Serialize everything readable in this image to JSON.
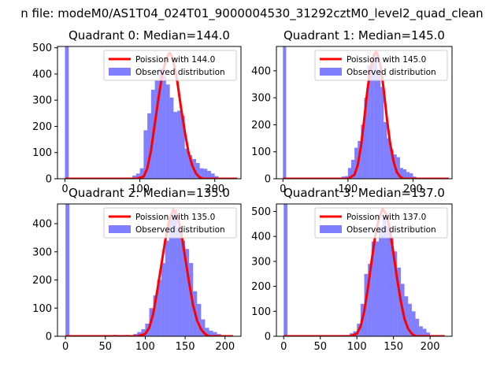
{
  "figure_title": "n file: modeM0/AS1T04_024T01_9000004530_31292cztM0_level2_quad_clean",
  "chart_data": [
    {
      "type": "bar",
      "title": "Quadrant 0: Median=144.0",
      "median": 144.0,
      "xlim": [
        -10,
        235
      ],
      "ylim": [
        0,
        505
      ],
      "xticks": [
        0,
        100,
        200
      ],
      "yticks": [
        0,
        100,
        200,
        300,
        400,
        500
      ],
      "legend_position": "upper right",
      "legend": [
        "Poission with 144.0",
        "Observed distribution"
      ],
      "series": [
        {
          "name": "Observed distribution",
          "kind": "histogram",
          "color": "#0000ff",
          "bin_width": 5,
          "bins": [
            [
              0,
              505
            ],
            [
              75,
              3
            ],
            [
              80,
              3
            ],
            [
              85,
              3
            ],
            [
              90,
              12
            ],
            [
              95,
              20
            ],
            [
              100,
              40
            ],
            [
              105,
              185
            ],
            [
              110,
              250
            ],
            [
              115,
              340
            ],
            [
              120,
              375
            ],
            [
              125,
              420
            ],
            [
              130,
              400
            ],
            [
              135,
              360
            ],
            [
              140,
              310
            ],
            [
              145,
              255
            ],
            [
              150,
              260
            ],
            [
              155,
              240
            ],
            [
              160,
              115
            ],
            [
              165,
              90
            ],
            [
              170,
              75
            ],
            [
              175,
              60
            ],
            [
              180,
              40
            ],
            [
              185,
              38
            ],
            [
              190,
              30
            ],
            [
              195,
              20
            ],
            [
              200,
              10
            ]
          ]
        },
        {
          "name": "Poission with 144.0",
          "kind": "line",
          "color": "#ff0000",
          "points": [
            [
              0,
              0
            ],
            [
              95,
              0
            ],
            [
              105,
              8
            ],
            [
              110,
              40
            ],
            [
              115,
              110
            ],
            [
              120,
              210
            ],
            [
              125,
              310
            ],
            [
              130,
              400
            ],
            [
              135,
              455
            ],
            [
              138,
              475
            ],
            [
              140,
              480
            ],
            [
              142,
              470
            ],
            [
              145,
              445
            ],
            [
              150,
              370
            ],
            [
              155,
              270
            ],
            [
              160,
              180
            ],
            [
              165,
              100
            ],
            [
              170,
              50
            ],
            [
              175,
              20
            ],
            [
              180,
              5
            ],
            [
              185,
              0
            ],
            [
              230,
              0
            ]
          ]
        }
      ]
    },
    {
      "type": "bar",
      "title": "Quadrant 1: Median=145.0",
      "median": 145.0,
      "xlim": [
        -10,
        260
      ],
      "ylim": [
        0,
        490
      ],
      "xticks": [
        0,
        100,
        200
      ],
      "yticks": [
        0,
        100,
        200,
        300,
        400
      ],
      "legend_position": "upper right",
      "legend": [
        "Poission with 145.0",
        "Observed distribution"
      ],
      "series": [
        {
          "name": "Observed distribution",
          "kind": "histogram",
          "color": "#0000ff",
          "bin_width": 5,
          "bins": [
            [
              0,
              490
            ],
            [
              80,
              3
            ],
            [
              85,
              3
            ],
            [
              90,
              8
            ],
            [
              95,
              10
            ],
            [
              100,
              40
            ],
            [
              105,
              70
            ],
            [
              110,
              115
            ],
            [
              115,
              140
            ],
            [
              120,
              200
            ],
            [
              125,
              300
            ],
            [
              130,
              420
            ],
            [
              135,
              440
            ],
            [
              140,
              460
            ],
            [
              145,
              400
            ],
            [
              150,
              340
            ],
            [
              155,
              210
            ],
            [
              160,
              150
            ],
            [
              165,
              110
            ],
            [
              170,
              90
            ],
            [
              175,
              80
            ],
            [
              180,
              40
            ],
            [
              185,
              35
            ],
            [
              190,
              25
            ],
            [
              195,
              20
            ],
            [
              200,
              8
            ]
          ]
        },
        {
          "name": "Poission with 145.0",
          "kind": "line",
          "color": "#ff0000",
          "points": [
            [
              0,
              0
            ],
            [
              100,
              0
            ],
            [
              110,
              15
            ],
            [
              115,
              50
            ],
            [
              120,
              120
            ],
            [
              125,
              220
            ],
            [
              130,
              330
            ],
            [
              135,
              410
            ],
            [
              140,
              460
            ],
            [
              143,
              470
            ],
            [
              145,
              465
            ],
            [
              150,
              420
            ],
            [
              155,
              330
            ],
            [
              160,
              220
            ],
            [
              165,
              130
            ],
            [
              170,
              65
            ],
            [
              175,
              25
            ],
            [
              180,
              8
            ],
            [
              185,
              0
            ],
            [
              255,
              0
            ]
          ]
        }
      ]
    },
    {
      "type": "bar",
      "title": "Quadrant 2: Median=135.0",
      "median": 135.0,
      "xlim": [
        -10,
        220
      ],
      "ylim": [
        0,
        470
      ],
      "xticks": [
        0,
        50,
        100,
        150,
        200
      ],
      "yticks": [
        0,
        100,
        200,
        300,
        400
      ],
      "legend_position": "upper right",
      "legend": [
        "Poission with 135.0",
        "Observed distribution"
      ],
      "series": [
        {
          "name": "Observed distribution",
          "kind": "histogram",
          "color": "#0000ff",
          "bin_width": 5,
          "bins": [
            [
              0,
              470
            ],
            [
              60,
              5
            ],
            [
              75,
              5
            ],
            [
              85,
              8
            ],
            [
              90,
              15
            ],
            [
              95,
              25
            ],
            [
              100,
              45
            ],
            [
              105,
              100
            ],
            [
              110,
              145
            ],
            [
              115,
              200
            ],
            [
              120,
              260
            ],
            [
              125,
              340
            ],
            [
              130,
              420
            ],
            [
              135,
              450
            ],
            [
              140,
              390
            ],
            [
              145,
              340
            ],
            [
              150,
              310
            ],
            [
              155,
              260
            ],
            [
              160,
              160
            ],
            [
              165,
              115
            ],
            [
              170,
              60
            ],
            [
              175,
              30
            ],
            [
              180,
              20
            ],
            [
              185,
              15
            ],
            [
              190,
              8
            ],
            [
              195,
              3
            ]
          ]
        },
        {
          "name": "Poission with 135.0",
          "kind": "line",
          "color": "#ff0000",
          "points": [
            [
              0,
              0
            ],
            [
              90,
              0
            ],
            [
              100,
              8
            ],
            [
              105,
              30
            ],
            [
              110,
              80
            ],
            [
              115,
              160
            ],
            [
              120,
              250
            ],
            [
              125,
              340
            ],
            [
              130,
              410
            ],
            [
              135,
              450
            ],
            [
              140,
              430
            ],
            [
              145,
              370
            ],
            [
              150,
              280
            ],
            [
              155,
              190
            ],
            [
              160,
              110
            ],
            [
              165,
              55
            ],
            [
              170,
              25
            ],
            [
              175,
              8
            ],
            [
              180,
              0
            ],
            [
              210,
              0
            ]
          ]
        }
      ]
    },
    {
      "type": "bar",
      "title": "Quadrant 3: Median=137.0",
      "median": 137.0,
      "xlim": [
        -10,
        230
      ],
      "ylim": [
        0,
        530
      ],
      "xticks": [
        0,
        50,
        100,
        150,
        200
      ],
      "yticks": [
        0,
        100,
        200,
        300,
        400,
        500
      ],
      "legend_position": "upper right",
      "legend": [
        "Poission with 137.0",
        "Observed distribution"
      ],
      "series": [
        {
          "name": "Observed distribution",
          "kind": "histogram",
          "color": "#0000ff",
          "bin_width": 5,
          "bins": [
            [
              0,
              530
            ],
            [
              75,
              3
            ],
            [
              85,
              5
            ],
            [
              90,
              12
            ],
            [
              95,
              20
            ],
            [
              100,
              50
            ],
            [
              105,
              130
            ],
            [
              110,
              250
            ],
            [
              115,
              290
            ],
            [
              120,
              380
            ],
            [
              125,
              380
            ],
            [
              130,
              440
            ],
            [
              135,
              480
            ],
            [
              140,
              440
            ],
            [
              145,
              400
            ],
            [
              150,
              340
            ],
            [
              155,
              275
            ],
            [
              160,
              210
            ],
            [
              165,
              160
            ],
            [
              170,
              130
            ],
            [
              175,
              100
            ],
            [
              180,
              70
            ],
            [
              185,
              40
            ],
            [
              190,
              30
            ],
            [
              195,
              15
            ]
          ]
        },
        {
          "name": "Poission with 137.0",
          "kind": "line",
          "color": "#ff0000",
          "points": [
            [
              0,
              0
            ],
            [
              90,
              0
            ],
            [
              100,
              10
            ],
            [
              105,
              40
            ],
            [
              110,
              100
            ],
            [
              115,
              190
            ],
            [
              120,
              300
            ],
            [
              125,
              400
            ],
            [
              130,
              470
            ],
            [
              135,
              510
            ],
            [
              140,
              490
            ],
            [
              145,
              430
            ],
            [
              150,
              330
            ],
            [
              155,
              230
            ],
            [
              160,
              140
            ],
            [
              165,
              70
            ],
            [
              170,
              30
            ],
            [
              175,
              10
            ],
            [
              180,
              0
            ],
            [
              220,
              0
            ]
          ]
        }
      ]
    }
  ]
}
